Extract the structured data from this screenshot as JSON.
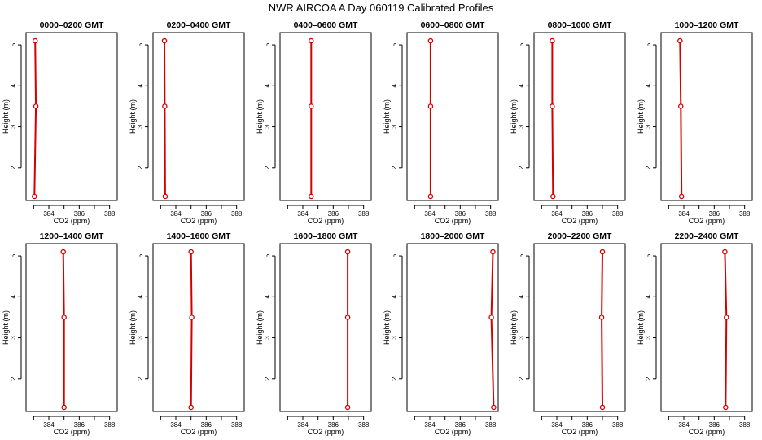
{
  "page": {
    "title": "NWR AIRCOA A  Day 060119  Calibrated Profiles"
  },
  "style": {
    "line_color": "#d40000",
    "marker_color": "#d40000",
    "axis_color": "#000000"
  },
  "chart_data": [
    {
      "type": "line",
      "title": "0000–0200 GMT",
      "xlabel": "CO2 (ppm)",
      "ylabel": "Height (m)",
      "xlim": [
        382.5,
        388.5
      ],
      "ylim": [
        1.2,
        5.3
      ],
      "xticks": [
        384,
        386,
        388
      ],
      "xticks_minor": [
        383,
        385,
        387
      ],
      "yticks": [
        2,
        3,
        4,
        5
      ],
      "series": [
        {
          "points": [
            {
              "x": 383.1,
              "y": 5.1
            },
            {
              "x": 383.15,
              "y": 3.5
            },
            {
              "x": 383.05,
              "y": 1.3
            }
          ]
        }
      ]
    },
    {
      "type": "line",
      "title": "0200–0400 GMT",
      "xlabel": "CO2 (ppm)",
      "ylabel": "Height (m)",
      "xlim": [
        382.5,
        388.5
      ],
      "ylim": [
        1.2,
        5.3
      ],
      "xticks": [
        384,
        386,
        388
      ],
      "xticks_minor": [
        383,
        385,
        387
      ],
      "yticks": [
        2,
        3,
        4,
        5
      ],
      "series": [
        {
          "points": [
            {
              "x": 383.25,
              "y": 5.1
            },
            {
              "x": 383.27,
              "y": 3.5
            },
            {
              "x": 383.3,
              "y": 1.3
            }
          ]
        }
      ]
    },
    {
      "type": "line",
      "title": "0400–0600 GMT",
      "xlabel": "CO2 (ppm)",
      "ylabel": "Height (m)",
      "xlim": [
        382.5,
        388.5
      ],
      "ylim": [
        1.2,
        5.3
      ],
      "xticks": [
        384,
        386,
        388
      ],
      "xticks_minor": [
        383,
        385,
        387
      ],
      "yticks": [
        2,
        3,
        4,
        5
      ],
      "series": [
        {
          "points": [
            {
              "x": 384.55,
              "y": 5.1
            },
            {
              "x": 384.55,
              "y": 3.5
            },
            {
              "x": 384.55,
              "y": 1.3
            }
          ]
        }
      ]
    },
    {
      "type": "line",
      "title": "0600–0800 GMT",
      "xlabel": "CO2 (ppm)",
      "ylabel": "Height (m)",
      "xlim": [
        382.5,
        388.5
      ],
      "ylim": [
        1.2,
        5.3
      ],
      "xticks": [
        384,
        386,
        388
      ],
      "xticks_minor": [
        383,
        385,
        387
      ],
      "yticks": [
        2,
        3,
        4,
        5
      ],
      "series": [
        {
          "points": [
            {
              "x": 384.05,
              "y": 5.1
            },
            {
              "x": 384.05,
              "y": 3.5
            },
            {
              "x": 384.05,
              "y": 1.3
            }
          ]
        }
      ]
    },
    {
      "type": "line",
      "title": "0800–1000 GMT",
      "xlabel": "CO2 (ppm)",
      "ylabel": "Height (m)",
      "xlim": [
        382.5,
        388.5
      ],
      "ylim": [
        1.2,
        5.3
      ],
      "xticks": [
        384,
        386,
        388
      ],
      "xticks_minor": [
        383,
        385,
        387
      ],
      "yticks": [
        2,
        3,
        4,
        5
      ],
      "series": [
        {
          "points": [
            {
              "x": 383.7,
              "y": 5.1
            },
            {
              "x": 383.7,
              "y": 3.5
            },
            {
              "x": 383.75,
              "y": 1.3
            }
          ]
        }
      ]
    },
    {
      "type": "line",
      "title": "1000–1200 GMT",
      "xlabel": "CO2 (ppm)",
      "ylabel": "Height (m)",
      "xlim": [
        382.5,
        388.5
      ],
      "ylim": [
        1.2,
        5.3
      ],
      "xticks": [
        384,
        386,
        388
      ],
      "xticks_minor": [
        383,
        385,
        387
      ],
      "yticks": [
        2,
        3,
        4,
        5
      ],
      "series": [
        {
          "points": [
            {
              "x": 383.75,
              "y": 5.1
            },
            {
              "x": 383.8,
              "y": 3.5
            },
            {
              "x": 383.85,
              "y": 1.3
            }
          ]
        }
      ]
    },
    {
      "type": "line",
      "title": "1200–1400 GMT",
      "xlabel": "CO2 (ppm)",
      "ylabel": "Height (m)",
      "xlim": [
        382.5,
        388.5
      ],
      "ylim": [
        1.2,
        5.3
      ],
      "xticks": [
        384,
        386,
        388
      ],
      "xticks_minor": [
        383,
        385,
        387
      ],
      "yticks": [
        2,
        3,
        4,
        5
      ],
      "series": [
        {
          "points": [
            {
              "x": 384.95,
              "y": 5.1
            },
            {
              "x": 385.0,
              "y": 3.5
            },
            {
              "x": 385.0,
              "y": 1.3
            }
          ]
        }
      ]
    },
    {
      "type": "line",
      "title": "1400–1600 GMT",
      "xlabel": "CO2 (ppm)",
      "ylabel": "Height (m)",
      "xlim": [
        382.5,
        388.5
      ],
      "ylim": [
        1.2,
        5.3
      ],
      "xticks": [
        384,
        386,
        388
      ],
      "xticks_minor": [
        383,
        385,
        387
      ],
      "yticks": [
        2,
        3,
        4,
        5
      ],
      "series": [
        {
          "points": [
            {
              "x": 385.0,
              "y": 5.1
            },
            {
              "x": 385.05,
              "y": 3.5
            },
            {
              "x": 385.0,
              "y": 1.3
            }
          ]
        }
      ]
    },
    {
      "type": "line",
      "title": "1600–1800 GMT",
      "xlabel": "CO2 (ppm)",
      "ylabel": "Height (m)",
      "xlim": [
        382.5,
        388.5
      ],
      "ylim": [
        1.2,
        5.3
      ],
      "xticks": [
        384,
        386,
        388
      ],
      "xticks_minor": [
        383,
        385,
        387
      ],
      "yticks": [
        2,
        3,
        4,
        5
      ],
      "series": [
        {
          "points": [
            {
              "x": 386.95,
              "y": 5.1
            },
            {
              "x": 386.95,
              "y": 3.5
            },
            {
              "x": 386.95,
              "y": 1.3
            }
          ]
        }
      ]
    },
    {
      "type": "line",
      "title": "1800–2000 GMT",
      "xlabel": "CO2 (ppm)",
      "ylabel": "Height (m)",
      "xlim": [
        382.5,
        388.5
      ],
      "ylim": [
        1.2,
        5.3
      ],
      "xticks": [
        384,
        386,
        388
      ],
      "xticks_minor": [
        383,
        385,
        387
      ],
      "yticks": [
        2,
        3,
        4,
        5
      ],
      "series": [
        {
          "points": [
            {
              "x": 388.15,
              "y": 5.1
            },
            {
              "x": 388.05,
              "y": 3.5
            },
            {
              "x": 388.2,
              "y": 1.3
            }
          ]
        }
      ]
    },
    {
      "type": "line",
      "title": "2000–2200 GMT",
      "xlabel": "CO2 (ppm)",
      "ylabel": "Height (m)",
      "xlim": [
        382.5,
        388.5
      ],
      "ylim": [
        1.2,
        5.3
      ],
      "xticks": [
        384,
        386,
        388
      ],
      "xticks_minor": [
        383,
        385,
        387
      ],
      "yticks": [
        2,
        3,
        4,
        5
      ],
      "series": [
        {
          "points": [
            {
              "x": 387.0,
              "y": 5.1
            },
            {
              "x": 386.95,
              "y": 3.5
            },
            {
              "x": 387.0,
              "y": 1.3
            }
          ]
        }
      ]
    },
    {
      "type": "line",
      "title": "2200–2400 GMT",
      "xlabel": "CO2 (ppm)",
      "ylabel": "Height (m)",
      "xlim": [
        382.5,
        388.5
      ],
      "ylim": [
        1.2,
        5.3
      ],
      "xticks": [
        384,
        386,
        388
      ],
      "xticks_minor": [
        383,
        385,
        387
      ],
      "yticks": [
        2,
        3,
        4,
        5
      ],
      "series": [
        {
          "points": [
            {
              "x": 386.7,
              "y": 5.1
            },
            {
              "x": 386.8,
              "y": 3.5
            },
            {
              "x": 386.75,
              "y": 1.3
            }
          ]
        }
      ]
    }
  ]
}
